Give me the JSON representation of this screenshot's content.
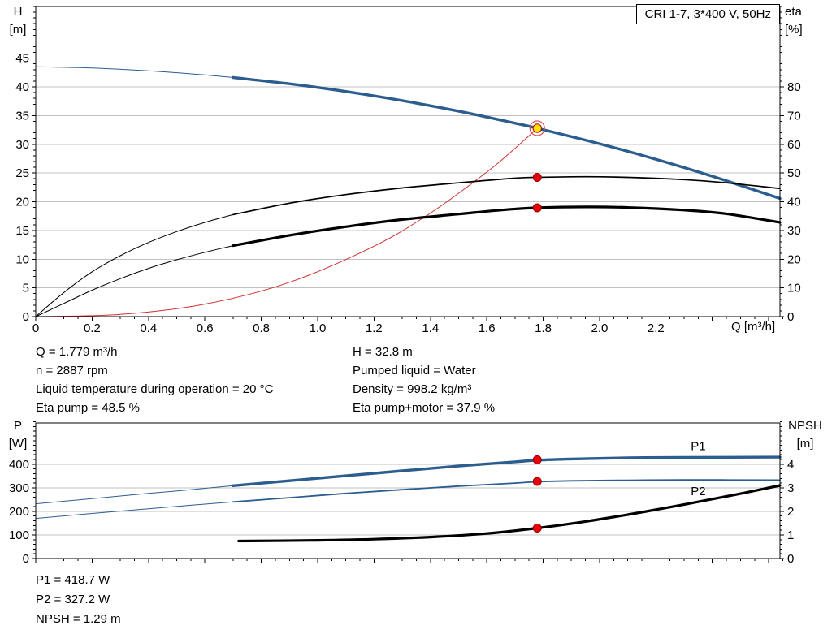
{
  "info_top": {
    "left": [
      "Q = 1.779 m³/h",
      "n = 2887 rpm",
      "Liquid temperature during operation = 20 °C",
      "Eta pump = 48.5 %"
    ],
    "right": [
      "H = 32.8 m",
      "Pumped liquid = Water",
      "Density = 998.2 kg/m³",
      "Eta pump+motor = 37.9 %"
    ]
  },
  "info_bottom": [
    "P1 = 418.7 W",
    "P2 = 327.2 W",
    "NPSH = 1.29 m"
  ],
  "chart_data": [
    {
      "type": "line",
      "title": "CRI 1-7, 3*400 V, 50Hz",
      "axis_labels": {
        "left": [
          "H",
          "[m]"
        ],
        "right": [
          "eta",
          "[%]"
        ],
        "x": "Q [m³/h]"
      },
      "x_range": [
        0,
        2.64
      ],
      "y_range": [
        0,
        54
      ],
      "y2_scale": 0.5,
      "x_ticks": [
        "0",
        "0.2",
        "0.4",
        "0.6",
        "0.8",
        "1.0",
        "1.2",
        "1.4",
        "1.6",
        "1.8",
        "2.0",
        "2.2"
      ],
      "y_ticks": [
        "0",
        "5",
        "10",
        "15",
        "20",
        "25",
        "30",
        "35",
        "40",
        "45"
      ],
      "y2_ticks": [
        "0",
        "10",
        "20",
        "30",
        "40",
        "50",
        "60",
        "70",
        "80"
      ],
      "x_tick_step": 0.2,
      "x_minor": 0.05,
      "y_minor": 1,
      "show_x_labels": true,
      "grid": true,
      "grid_color": "#c0c0c0",
      "series": [
        {
          "name": "head-min-flow",
          "color": "#2b5d8f",
          "width": 1,
          "points": [
            [
              0,
              43.5
            ],
            [
              0.2,
              43.28
            ],
            [
              0.4,
              42.8
            ],
            [
              0.6,
              42.08
            ],
            [
              0.7,
              41.63
            ]
          ]
        },
        {
          "name": "head",
          "color": "#2b5d8f",
          "width": 3.4,
          "points": [
            [
              0.7,
              41.63
            ],
            [
              0.9,
              40.54
            ],
            [
              1.1,
              39.2
            ],
            [
              1.3,
              37.61
            ],
            [
              1.5,
              35.78
            ],
            [
              1.7,
              33.69
            ],
            [
              1.779,
              32.8
            ],
            [
              2.0,
              30.1
            ],
            [
              2.2,
              27.4
            ],
            [
              2.4,
              24.44
            ],
            [
              2.64,
              20.57
            ]
          ]
        },
        {
          "name": "system-curve",
          "color": "#d03030",
          "width": 1,
          "points": [
            [
              0,
              0
            ],
            [
              0.3,
              0.38
            ],
            [
              0.6,
              2.17
            ],
            [
              0.9,
              5.97
            ],
            [
              1.2,
              12.25
            ],
            [
              1.4,
              18.02
            ],
            [
              1.6,
              25.16
            ],
            [
              1.7,
              29.28
            ],
            [
              1.779,
              32.8
            ]
          ]
        },
        {
          "name": "eta-pump-min-flow",
          "color": "#000000",
          "width": 1,
          "points": [
            [
              0,
              0
            ],
            [
              0.1,
              4.2
            ],
            [
              0.2,
              7.8
            ],
            [
              0.3,
              10.6
            ],
            [
              0.4,
              12.9
            ],
            [
              0.5,
              14.8
            ],
            [
              0.6,
              16.4
            ],
            [
              0.7,
              17.75
            ]
          ]
        },
        {
          "name": "eta-pump",
          "color": "#000000",
          "width": 1.7,
          "points": [
            [
              0.7,
              17.75
            ],
            [
              0.9,
              19.75
            ],
            [
              1.1,
              21.25
            ],
            [
              1.3,
              22.4
            ],
            [
              1.5,
              23.3
            ],
            [
              1.7,
              24.1
            ],
            [
              1.779,
              24.25
            ],
            [
              1.95,
              24.35
            ],
            [
              2.1,
              24.25
            ],
            [
              2.3,
              23.85
            ],
            [
              2.45,
              23.3
            ],
            [
              2.64,
              22.3
            ]
          ]
        },
        {
          "name": "eta-pump-motor-min-flow",
          "color": "#000000",
          "width": 1,
          "points": [
            [
              0,
              0
            ],
            [
              0.1,
              2.3
            ],
            [
              0.2,
              4.6
            ],
            [
              0.3,
              6.6
            ],
            [
              0.4,
              8.4
            ],
            [
              0.5,
              9.9
            ],
            [
              0.6,
              11.2
            ],
            [
              0.7,
              12.35
            ]
          ]
        },
        {
          "name": "eta-pump-motor",
          "color": "#000000",
          "width": 3.2,
          "points": [
            [
              0.7,
              12.35
            ],
            [
              0.9,
              14.15
            ],
            [
              1.1,
              15.65
            ],
            [
              1.3,
              16.9
            ],
            [
              1.5,
              17.85
            ],
            [
              1.65,
              18.55
            ],
            [
              1.779,
              18.95
            ],
            [
              1.95,
              19.1
            ],
            [
              2.1,
              19.0
            ],
            [
              2.3,
              18.55
            ],
            [
              2.45,
              17.9
            ],
            [
              2.64,
              16.4
            ]
          ]
        }
      ],
      "markers": [
        {
          "name": "eta-pump-motor-point",
          "x": 1.779,
          "y": 18.95,
          "r": 5,
          "fill": "#e8000a",
          "stroke": "#990000"
        },
        {
          "name": "eta-pump-point",
          "x": 1.779,
          "y": 24.25,
          "r": 5,
          "fill": "#e8000a",
          "stroke": "#990000"
        },
        {
          "name": "duty-point",
          "x": 1.779,
          "y": 32.8,
          "r": 5.2,
          "fill": "#ffe000",
          "stroke": "#b00000",
          "ring_r": 9,
          "ring_color": "#d85050"
        }
      ],
      "labels": []
    },
    {
      "type": "line",
      "title": "",
      "axis_labels": {
        "left": [
          "P",
          "[W]"
        ],
        "right": [
          "NPSH",
          "[m]"
        ],
        "x": ""
      },
      "x_range": [
        0,
        2.64
      ],
      "y_range": [
        0,
        575
      ],
      "y2_scale": 100,
      "x_ticks": [],
      "y_ticks": [
        "0",
        "100",
        "200",
        "300",
        "400"
      ],
      "y2_ticks": [
        "0",
        "1",
        "2",
        "3",
        "4"
      ],
      "x_tick_step": 0.2,
      "x_minor": 0.05,
      "y_minor": 20,
      "show_x_labels": false,
      "grid": true,
      "grid_color": "#c0c0c0",
      "series": [
        {
          "name": "p1-min-flow",
          "color": "#2b5d8f",
          "width": 1,
          "points": [
            [
              0,
              232
            ],
            [
              0.2,
              254
            ],
            [
              0.4,
              276
            ],
            [
              0.55,
              292
            ],
            [
              0.7,
              309
            ]
          ]
        },
        {
          "name": "p1",
          "color": "#2b5d8f",
          "width": 3.4,
          "points": [
            [
              0.7,
              309
            ],
            [
              0.9,
              330
            ],
            [
              1.1,
              351
            ],
            [
              1.3,
              372
            ],
            [
              1.5,
              392
            ],
            [
              1.7,
              410
            ],
            [
              1.779,
              417
            ],
            [
              1.9,
              422
            ],
            [
              2.1,
              427
            ],
            [
              2.3,
              429
            ],
            [
              2.64,
              430
            ]
          ]
        },
        {
          "name": "p2-min-flow",
          "color": "#2b5d8f",
          "width": 1,
          "points": [
            [
              0,
              170
            ],
            [
              0.2,
              191
            ],
            [
              0.4,
              211
            ],
            [
              0.55,
              226
            ],
            [
              0.7,
              240
            ]
          ]
        },
        {
          "name": "p2",
          "color": "#2b5d8f",
          "width": 1.8,
          "points": [
            [
              0.7,
              240
            ],
            [
              0.9,
              258
            ],
            [
              1.1,
              276
            ],
            [
              1.3,
              292
            ],
            [
              1.5,
              307
            ],
            [
              1.7,
              320
            ],
            [
              1.779,
              326
            ],
            [
              1.9,
              329.5
            ],
            [
              2.1,
              332
            ],
            [
              2.3,
              333.5
            ],
            [
              2.64,
              332.5
            ]
          ]
        },
        {
          "name": "npsh",
          "color": "#000000",
          "width": 3.2,
          "points": [
            [
              0.72,
              74
            ],
            [
              1.0,
              77
            ],
            [
              1.2,
              82
            ],
            [
              1.4,
              91
            ],
            [
              1.6,
              106
            ],
            [
              1.779,
              129
            ],
            [
              1.95,
              157
            ],
            [
              2.1,
              186
            ],
            [
              2.25,
              218
            ],
            [
              2.4,
              252
            ],
            [
              2.52,
              280
            ],
            [
              2.64,
              310
            ]
          ]
        }
      ],
      "markers": [
        {
          "name": "p1-point",
          "x": 1.779,
          "y": 418.7,
          "r": 5,
          "fill": "#e8000a",
          "stroke": "#990000"
        },
        {
          "name": "p2-point",
          "x": 1.779,
          "y": 327.2,
          "r": 5,
          "fill": "#e8000a",
          "stroke": "#990000"
        },
        {
          "name": "npsh-point",
          "x": 1.779,
          "y": 129,
          "r": 5,
          "fill": "#e8000a",
          "stroke": "#990000"
        }
      ],
      "labels": [
        {
          "name": "p1-label",
          "text": "P1",
          "x": 2.35,
          "y": 460,
          "color": "#2b5d8f"
        },
        {
          "name": "p2-label",
          "text": "P2",
          "x": 2.35,
          "y": 268,
          "color": "#2b5d8f"
        }
      ]
    }
  ]
}
